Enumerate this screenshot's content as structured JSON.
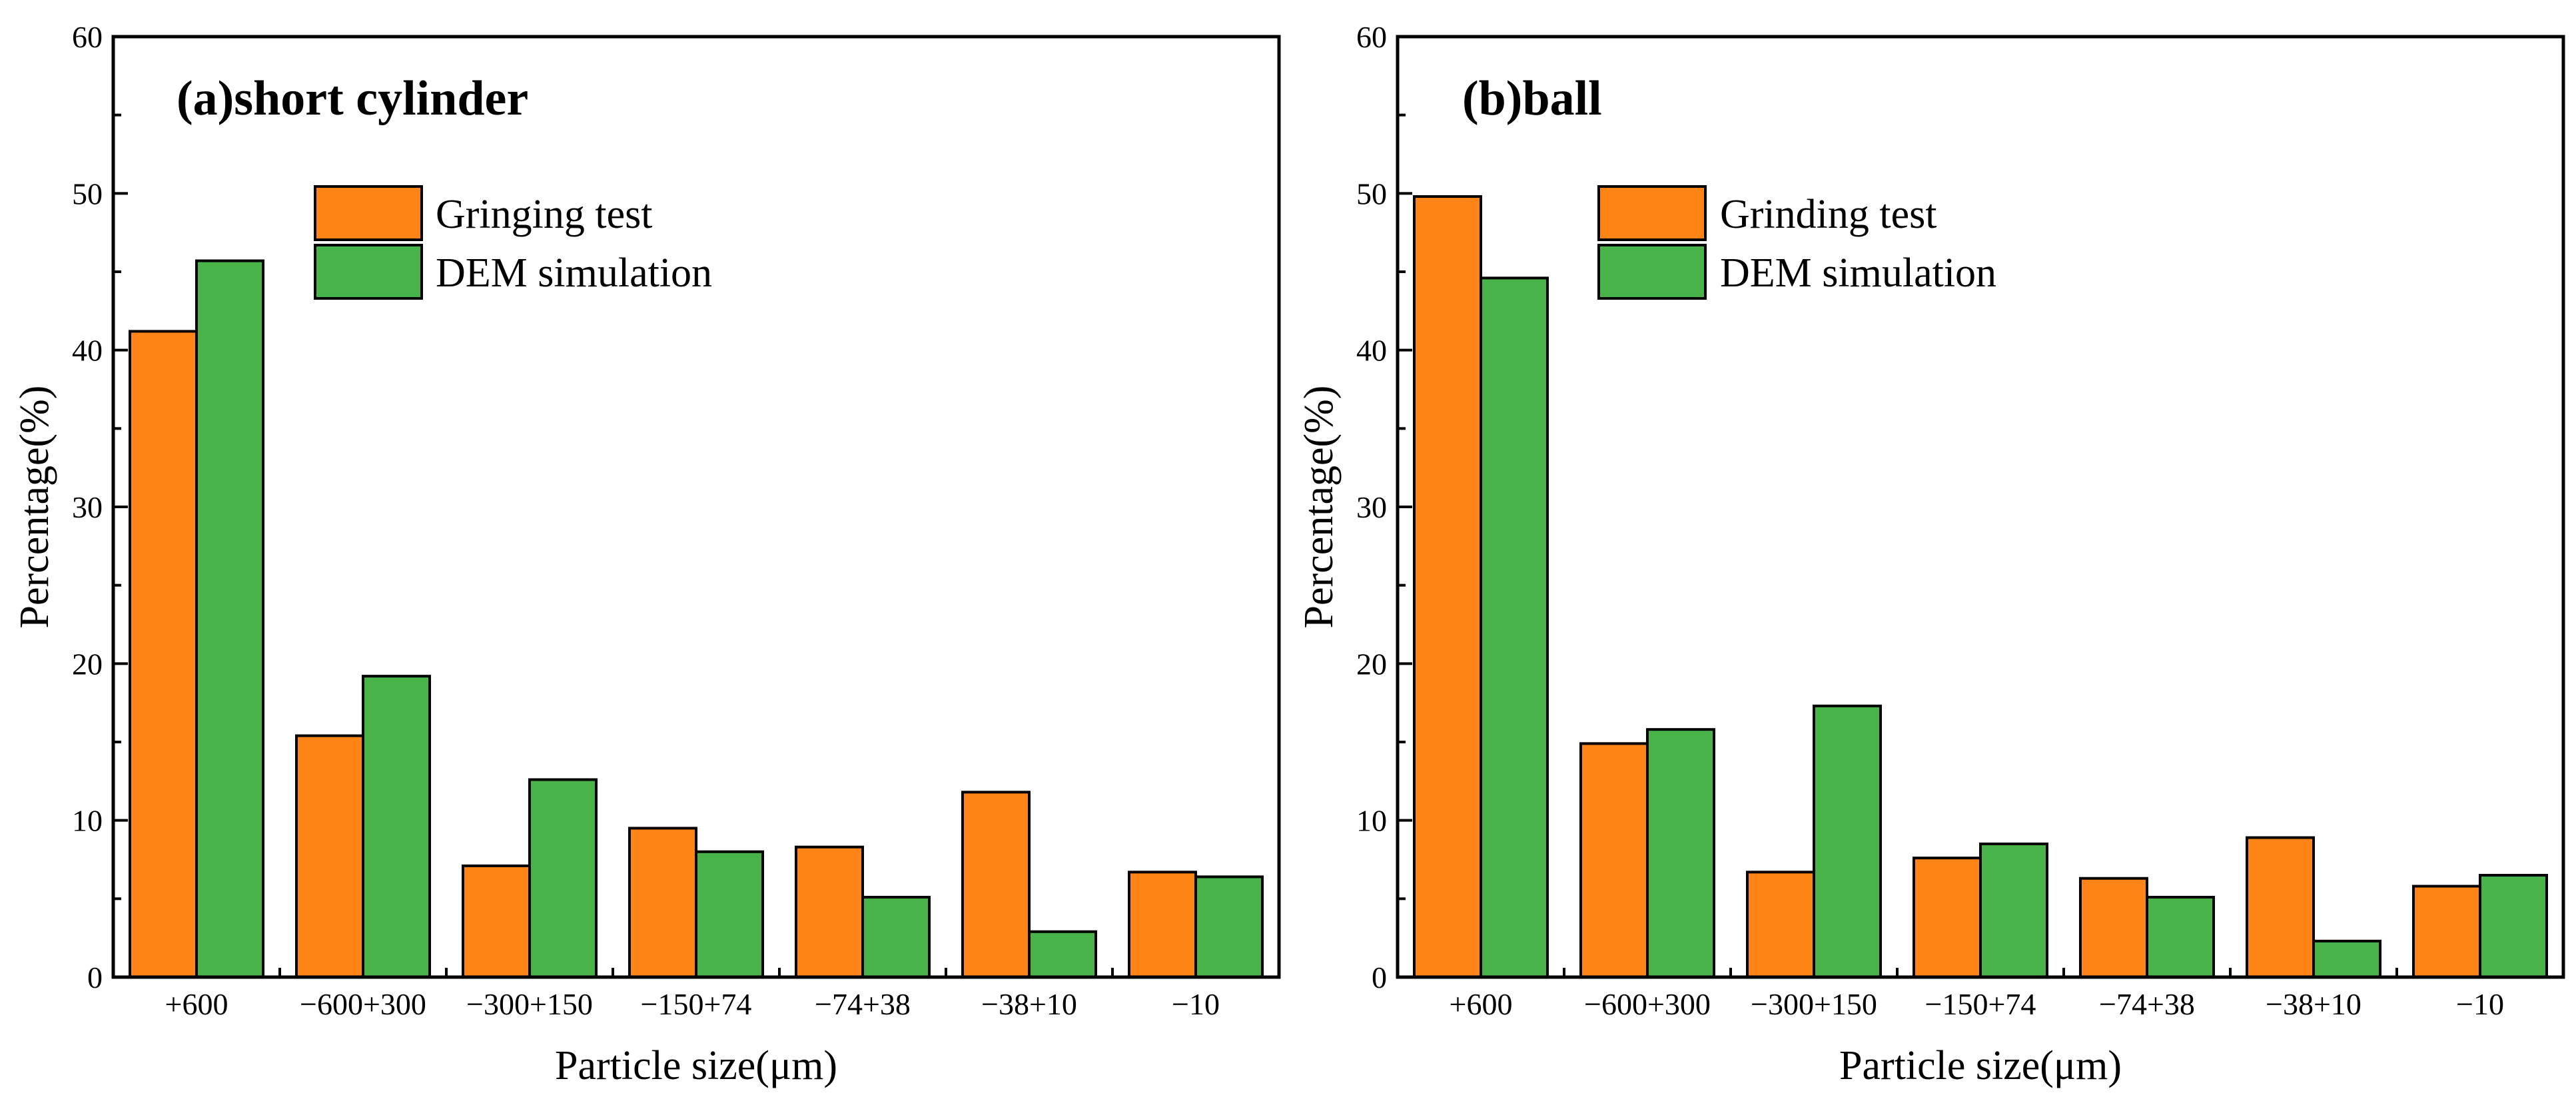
{
  "colors": {
    "series_0": "#FF8418",
    "series_1": "#48B348",
    "axis": "#000000",
    "background": "#FFFFFF"
  },
  "chart_data": [
    {
      "type": "bar",
      "title": "(a)short cylinder",
      "xlabel": "Particle size(μm)",
      "ylabel": "Percentage(%)",
      "ylim": [
        0,
        60
      ],
      "yticks": [
        "0",
        "10",
        "20",
        "30",
        "40",
        "50",
        "60"
      ],
      "grid": false,
      "legend_position": "top-center",
      "categories": [
        "+600",
        "−600+300",
        "−300+150",
        "−150+74",
        "−74+38",
        "−38+10",
        "−10"
      ],
      "series": [
        {
          "name": "Gringing test",
          "values": [
            41.2,
            15.4,
            7.1,
            9.5,
            8.3,
            11.8,
            6.7
          ]
        },
        {
          "name": "DEM simulation",
          "values": [
            45.7,
            19.2,
            12.6,
            8.0,
            5.1,
            2.9,
            6.4
          ]
        }
      ]
    },
    {
      "type": "bar",
      "title": "(b)ball",
      "xlabel": "Particle size(μm)",
      "ylabel": "Percentage(%)",
      "ylim": [
        0,
        60
      ],
      "yticks": [
        "0",
        "10",
        "20",
        "30",
        "40",
        "50",
        "60"
      ],
      "grid": false,
      "legend_position": "top-center",
      "categories": [
        "+600",
        "−600+300",
        "−300+150",
        "−150+74",
        "−74+38",
        "−38+10",
        "−10"
      ],
      "series": [
        {
          "name": "Grinding test",
          "values": [
            49.8,
            14.9,
            6.7,
            7.6,
            6.3,
            8.9,
            5.8
          ]
        },
        {
          "name": "DEM simulation",
          "values": [
            44.6,
            15.8,
            17.3,
            8.5,
            5.1,
            2.3,
            6.5
          ]
        }
      ]
    }
  ]
}
